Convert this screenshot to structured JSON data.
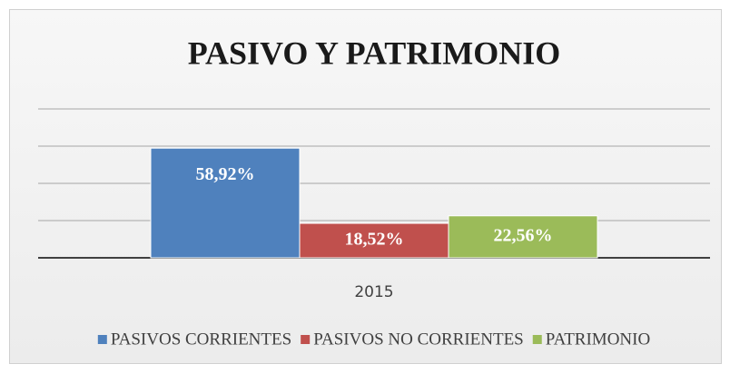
{
  "chart_data": {
    "type": "bar",
    "title": "PASIVO Y PATRIMONIO",
    "categories": [
      "2015"
    ],
    "series": [
      {
        "name": "PASIVOS CORRIENTES",
        "color": "#4f81bd",
        "values": [
          58.92
        ],
        "value_labels": [
          "58,92%"
        ]
      },
      {
        "name": "PASIVOS NO CORRIENTES",
        "color": "#c0504d",
        "values": [
          18.52
        ],
        "value_labels": [
          "18,52%"
        ]
      },
      {
        "name": "PATRIMONIO",
        "color": "#9bbb59",
        "values": [
          22.56
        ],
        "value_labels": [
          "22,56%"
        ]
      }
    ],
    "ylim": [
      0,
      80
    ],
    "yticks": [
      0,
      20,
      40,
      60,
      80
    ],
    "grid": true,
    "legend": "bottom"
  }
}
